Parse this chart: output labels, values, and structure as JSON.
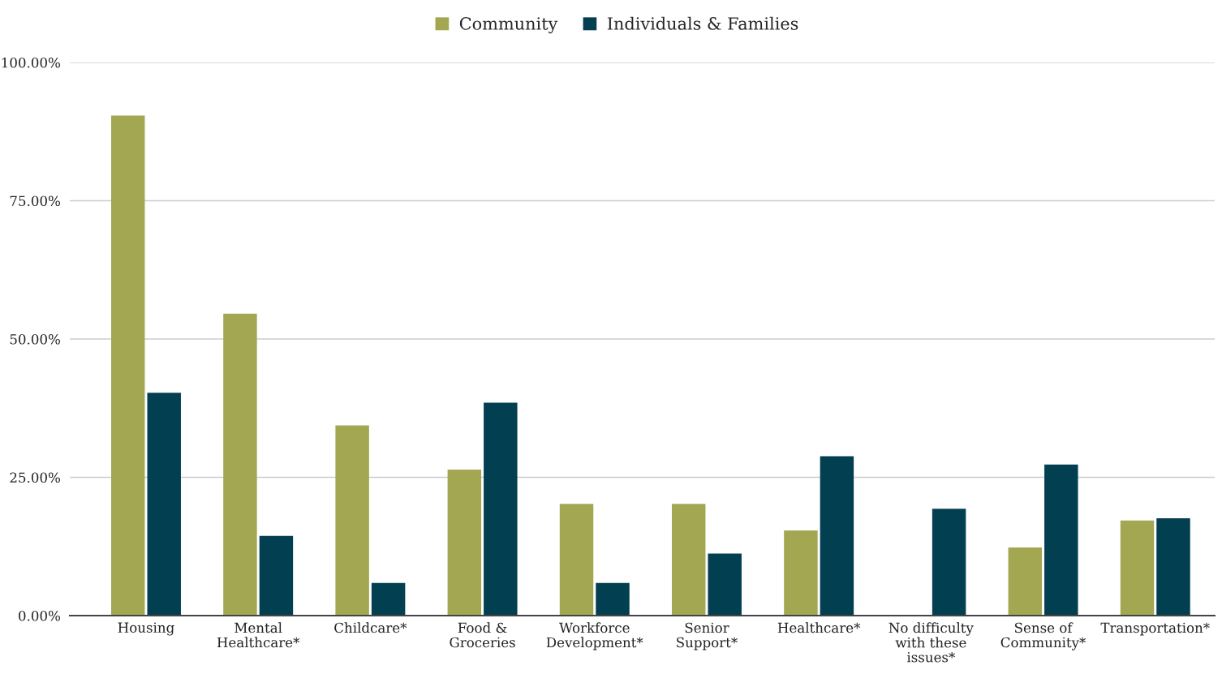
{
  "chart_data": {
    "type": "bar",
    "categories": [
      "Housing",
      "Mental\nHealthcare*",
      "Childcare*",
      "Food &\nGroceries",
      "Workforce\nDevelopment*",
      "Senior\nSupport*",
      "Healthcare*",
      "No difficulty\nwith these\nissues*",
      "Sense of\nCommunity*",
      "Transportation*"
    ],
    "series": [
      {
        "name": "Community",
        "color": "#a3a752",
        "values": [
          90.4,
          54.6,
          34.4,
          26.4,
          20.2,
          20.2,
          15.4,
          null,
          12.3,
          17.2
        ]
      },
      {
        "name": "Individuals & Families",
        "color": "#023f51",
        "values": [
          40.3,
          14.4,
          5.9,
          38.5,
          5.9,
          11.2,
          28.8,
          19.3,
          27.3,
          17.6
        ]
      }
    ],
    "ylim": [
      0,
      100
    ],
    "yticks": [
      {
        "value": 0,
        "label": "0.00%"
      },
      {
        "value": 25,
        "label": "25.00%"
      },
      {
        "value": 50,
        "label": "50.00%"
      },
      {
        "value": 75,
        "label": "75.00%"
      },
      {
        "value": 100,
        "label": "100.00%"
      }
    ],
    "grid": "y",
    "legend": "top"
  }
}
